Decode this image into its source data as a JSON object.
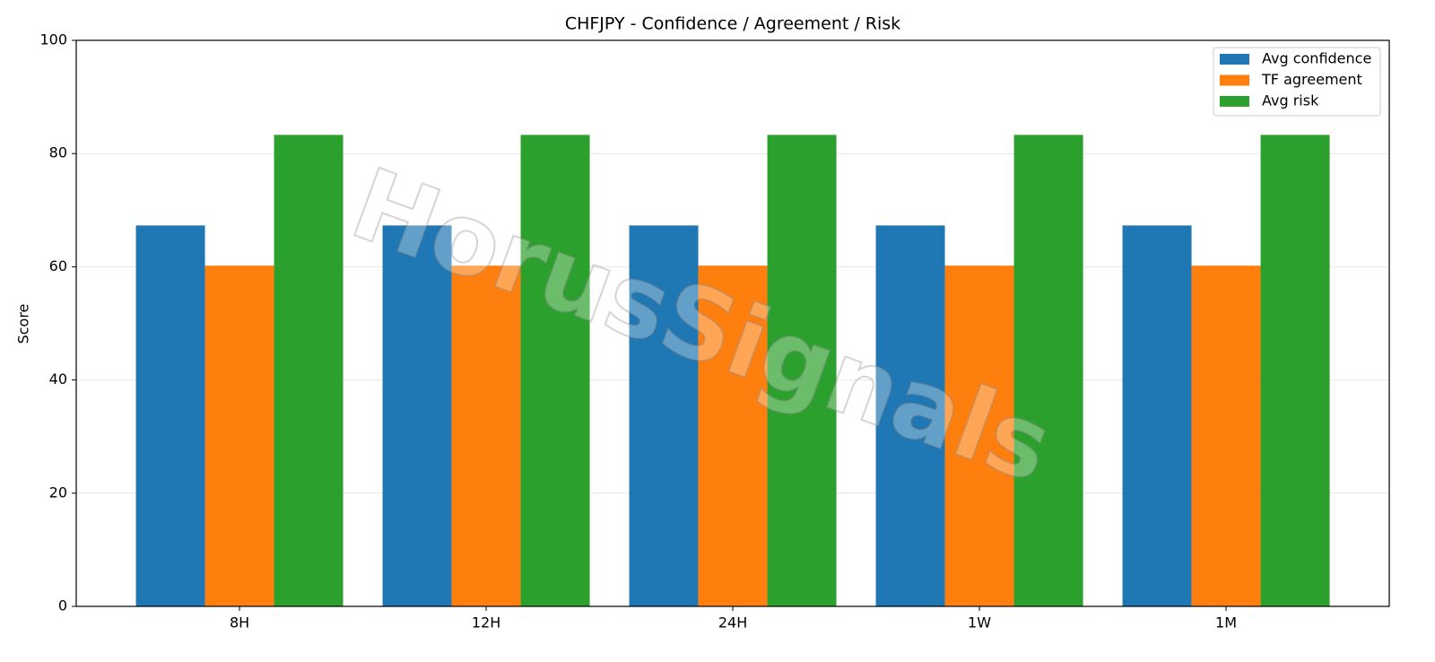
{
  "chart_data": {
    "type": "bar",
    "title": "CHFJPY - Confidence / Agreement / Risk",
    "ylabel": "Score",
    "watermark": "HorusSignals",
    "categories": [
      "8H",
      "12H",
      "24H",
      "1W",
      "1M"
    ],
    "series": [
      {
        "name": "Avg confidence",
        "color": "#1f77b4",
        "values": [
          67.3,
          67.3,
          67.3,
          67.3,
          67.3
        ]
      },
      {
        "name": "TF agreement",
        "color": "#ff7f0e",
        "values": [
          60.2,
          60.2,
          60.2,
          60.2,
          60.2
        ]
      },
      {
        "name": "Avg risk",
        "color": "#2ca02c",
        "values": [
          83.3,
          83.3,
          83.3,
          83.3,
          83.3
        ]
      }
    ],
    "ylim": [
      0,
      100
    ],
    "yticks": [
      0,
      20,
      40,
      60,
      80,
      100
    ],
    "grid": true,
    "legend": "upper right"
  }
}
